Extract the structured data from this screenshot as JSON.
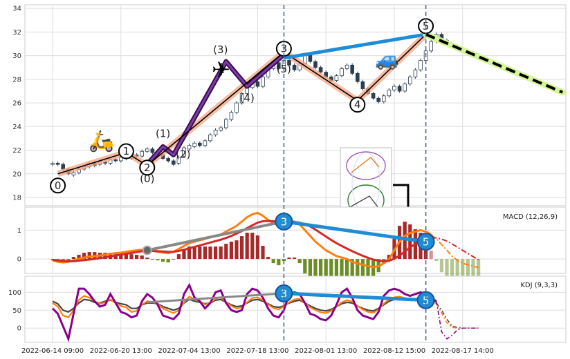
{
  "chart_data": [
    {
      "type": "candlestick",
      "panel": "price",
      "ylim": [
        17.3,
        34.3
      ],
      "y_ticks": [
        18,
        20,
        22,
        24,
        26,
        28,
        30,
        32,
        34
      ],
      "grid": true,
      "candles": [
        [
          0,
          20.8,
          20.9
        ],
        [
          1,
          20.9,
          20.8
        ],
        [
          2,
          20.8,
          20.4
        ],
        [
          3,
          20.4,
          20.0
        ],
        [
          4,
          19.9,
          20.1
        ],
        [
          5,
          20.1,
          20.4
        ],
        [
          6,
          20.4,
          20.6
        ],
        [
          7,
          20.6,
          20.9
        ],
        [
          8,
          20.9,
          20.7
        ],
        [
          9,
          20.8,
          21.0
        ],
        [
          10,
          21.0,
          20.9
        ],
        [
          11,
          20.9,
          21.2
        ],
        [
          12,
          21.2,
          21.1
        ],
        [
          13,
          21.1,
          21.4
        ],
        [
          14,
          21.4,
          21.3
        ],
        [
          15,
          21.3,
          21.6
        ],
        [
          16,
          21.6,
          21.5
        ],
        [
          17,
          21.5,
          21.9
        ],
        [
          18,
          21.9,
          22.1
        ],
        [
          19,
          22.1,
          21.8
        ],
        [
          20,
          21.8,
          21.6
        ],
        [
          21,
          21.6,
          21.3
        ],
        [
          22,
          21.3,
          21.1
        ],
        [
          23,
          21.1,
          20.8
        ],
        [
          24,
          20.9,
          21.4
        ],
        [
          25,
          21.5,
          22.2
        ],
        [
          26,
          22.1,
          22.4
        ],
        [
          27,
          22.3,
          22.6
        ],
        [
          28,
          22.6,
          22.4
        ],
        [
          29,
          22.4,
          22.8
        ],
        [
          30,
          22.8,
          23.3
        ],
        [
          31,
          23.3,
          23.7
        ],
        [
          32,
          23.7,
          23.9
        ],
        [
          33,
          23.9,
          24.6
        ],
        [
          34,
          24.6,
          25.2
        ],
        [
          35,
          25.2,
          26.0
        ],
        [
          36,
          26.0,
          26.8
        ],
        [
          37,
          26.8,
          27.3
        ],
        [
          38,
          27.3,
          27.8
        ],
        [
          39,
          27.8,
          27.4
        ],
        [
          40,
          27.4,
          28.2
        ],
        [
          41,
          28.2,
          28.9
        ],
        [
          42,
          28.9,
          29.4
        ],
        [
          43,
          29.4,
          28.9
        ],
        [
          44,
          28.9,
          29.6
        ],
        [
          45,
          29.6,
          29.2
        ],
        [
          46,
          29.2,
          28.8
        ],
        [
          47,
          28.8,
          29.3
        ],
        [
          48,
          29.3,
          30.1
        ],
        [
          49,
          30.1,
          29.5
        ],
        [
          50,
          29.5,
          29.0
        ],
        [
          51,
          29.0,
          28.6
        ],
        [
          52,
          28.6,
          28.2
        ],
        [
          53,
          28.2,
          27.9
        ],
        [
          54,
          27.9,
          28.3
        ],
        [
          55,
          28.3,
          28.9
        ],
        [
          56,
          28.9,
          29.2
        ],
        [
          57,
          29.2,
          28.5
        ],
        [
          58,
          28.5,
          27.8
        ],
        [
          59,
          27.8,
          27.2
        ],
        [
          60,
          27.2,
          26.8
        ],
        [
          61,
          26.8,
          26.4
        ],
        [
          62,
          26.4,
          26.1
        ],
        [
          63,
          26.1,
          26.6
        ],
        [
          64,
          26.6,
          27.1
        ],
        [
          65,
          27.1,
          27.4
        ],
        [
          66,
          27.4,
          27.0
        ],
        [
          67,
          27.0,
          27.6
        ],
        [
          68,
          27.6,
          28.2
        ],
        [
          69,
          28.2,
          28.8
        ],
        [
          70,
          28.8,
          29.6
        ],
        [
          71,
          29.6,
          30.4
        ],
        [
          72,
          30.4,
          31.2
        ],
        [
          73,
          31.2,
          31.8
        ],
        [
          74,
          31.8,
          31.3
        ],
        [
          75,
          31.3,
          31.1
        ]
      ],
      "elliott_wave_primary": {
        "points": [
          [
            1,
            20.0
          ],
          [
            14,
            21.8
          ],
          [
            18,
            20.7
          ],
          [
            44,
            30.3
          ],
          [
            58,
            26.2
          ],
          [
            71,
            31.8
          ]
        ],
        "labels": [
          "0",
          "1",
          "2",
          "3",
          "4",
          "5"
        ]
      },
      "elliott_wave_intermediate": {
        "points": [
          [
            18,
            20.8
          ],
          [
            21,
            22.3
          ],
          [
            23,
            21.6
          ],
          [
            33,
            29.5
          ],
          [
            37,
            27.4
          ],
          [
            44,
            30.1
          ]
        ],
        "labels": [
          "(0)",
          "(1)",
          "(2)",
          "(3)",
          "(4)",
          "(5)"
        ]
      },
      "divergence_line": [
        [
          44,
          29.8
        ],
        [
          71,
          31.8
        ]
      ],
      "forecast_line": [
        [
          71,
          31.8
        ],
        [
          97,
          26.9
        ]
      ],
      "markers": [
        "scooter-emoji",
        "airplane-emoji",
        "car-emoji"
      ]
    },
    {
      "type": "line",
      "panel": "macd",
      "title": "MACD (12,26,9)",
      "ylim": [
        -0.5,
        1.8
      ],
      "y_ticks": [
        0,
        1
      ],
      "series": [
        {
          "color": "#ff7f0e",
          "values": [
            -0.05,
            -0.1,
            -0.12,
            -0.1,
            -0.05,
            0.0,
            0.05,
            0.08,
            0.1,
            0.12,
            0.15,
            0.18,
            0.2,
            0.22,
            0.25,
            0.28,
            0.3,
            0.32,
            0.3,
            0.28,
            0.25,
            0.22,
            0.2,
            0.25,
            0.35,
            0.45,
            0.55,
            0.6,
            0.65,
            0.7,
            0.75,
            0.8,
            0.85,
            0.95,
            1.05,
            1.15,
            1.3,
            1.45,
            1.55,
            1.6,
            1.5,
            1.35,
            1.25,
            1.2,
            1.25,
            1.3,
            1.3,
            1.2,
            1.0,
            0.8,
            0.6,
            0.45,
            0.3,
            0.2,
            0.1,
            0.05,
            0.0,
            -0.1,
            -0.15,
            -0.2,
            -0.25,
            -0.28,
            -0.25,
            -0.15,
            0.0,
            0.3,
            0.6,
            0.8,
            0.9,
            0.95,
            1.0,
            0.95,
            0.85,
            0.7,
            0.5,
            0.3,
            0.1,
            -0.05,
            -0.15,
            -0.2,
            -0.25,
            -0.3
          ]
        },
        {
          "color": "#d62728",
          "values": [
            -0.03,
            -0.05,
            -0.07,
            -0.08,
            -0.08,
            -0.06,
            -0.04,
            -0.02,
            0.0,
            0.03,
            0.06,
            0.09,
            0.12,
            0.15,
            0.18,
            0.21,
            0.24,
            0.27,
            0.28,
            0.28,
            0.27,
            0.26,
            0.25,
            0.25,
            0.28,
            0.32,
            0.37,
            0.42,
            0.47,
            0.52,
            0.57,
            0.62,
            0.67,
            0.73,
            0.8,
            0.88,
            0.97,
            1.07,
            1.17,
            1.26,
            1.31,
            1.32,
            1.31,
            1.29,
            1.28,
            1.28,
            1.28,
            1.26,
            1.21,
            1.13,
            1.02,
            0.9,
            0.78,
            0.66,
            0.55,
            0.45,
            0.36,
            0.27,
            0.19,
            0.11,
            0.04,
            -0.02,
            -0.06,
            -0.08,
            -0.06,
            0.01,
            0.12,
            0.26,
            0.4,
            0.52,
            0.62,
            0.69,
            0.73,
            0.73,
            0.69,
            0.62,
            0.52,
            0.41,
            0.3,
            0.19,
            0.08,
            -0.02
          ]
        }
      ],
      "histogram_colors": [
        "#a52a2a",
        "#6b8e23"
      ],
      "divergence_line": [
        [
          18,
          0.3
        ],
        [
          44,
          1.3
        ]
      ],
      "divergence_line_2": [
        [
          44,
          1.3
        ],
        [
          71,
          0.6
        ]
      ]
    },
    {
      "type": "line",
      "panel": "kdj",
      "title": "KDJ (9,3,3)",
      "ylim": [
        -40,
        145
      ],
      "y_ticks": [
        0,
        50,
        100
      ],
      "series": [
        {
          "color": "#444444",
          "values": [
            75,
            68,
            50,
            45,
            55,
            70,
            80,
            78,
            72,
            70,
            75,
            78,
            72,
            68,
            65,
            55,
            55,
            65,
            70,
            70,
            68,
            60,
            55,
            50,
            55,
            70,
            80,
            75,
            72,
            68,
            70,
            78,
            80,
            72,
            65,
            60,
            62,
            70,
            78,
            80,
            75,
            68,
            60,
            58,
            62,
            70,
            75,
            78,
            70,
            62,
            55,
            50,
            48,
            52,
            60,
            68,
            72,
            70,
            62,
            55,
            50,
            48,
            55,
            65,
            75,
            80,
            82,
            80,
            78,
            80,
            82,
            85,
            80,
            70,
            50,
            25,
            5,
            2,
            0,
            0,
            0,
            0
          ]
        },
        {
          "color": "#ff7f0e",
          "values": [
            70,
            60,
            35,
            30,
            50,
            78,
            90,
            85,
            75,
            68,
            72,
            80,
            70,
            62,
            58,
            45,
            48,
            65,
            75,
            73,
            68,
            55,
            48,
            42,
            50,
            72,
            88,
            80,
            74,
            66,
            70,
            82,
            86,
            72,
            62,
            55,
            58,
            72,
            84,
            86,
            78,
            66,
            56,
            52,
            60,
            72,
            80,
            82,
            70,
            58,
            50,
            44,
            42,
            48,
            60,
            72,
            78,
            74,
            62,
            52,
            45,
            43,
            52,
            68,
            80,
            86,
            88,
            84,
            80,
            82,
            86,
            88,
            82,
            68,
            42,
            15,
            2,
            0,
            0,
            0,
            0,
            0
          ]
        },
        {
          "color": "#8b008b",
          "values": [
            55,
            40,
            5,
            -30,
            40,
            110,
            110,
            95,
            75,
            60,
            65,
            95,
            70,
            45,
            40,
            30,
            35,
            75,
            95,
            85,
            65,
            35,
            30,
            25,
            40,
            95,
            120,
            85,
            75,
            55,
            70,
            100,
            105,
            70,
            50,
            45,
            50,
            95,
            110,
            105,
            85,
            55,
            35,
            30,
            50,
            95,
            100,
            95,
            70,
            40,
            35,
            25,
            22,
            35,
            65,
            100,
            110,
            85,
            50,
            35,
            30,
            25,
            45,
            90,
            105,
            110,
            105,
            95,
            90,
            95,
            100,
            95,
            85,
            75,
            -10,
            -30,
            -20,
            -5,
            0,
            0,
            0,
            0
          ]
        }
      ],
      "divergence_line": [
        [
          18,
          72
        ],
        [
          44,
          97
        ]
      ],
      "divergence_line_2": [
        [
          44,
          97
        ],
        [
          71,
          78
        ]
      ]
    }
  ],
  "x_ticks": [
    {
      "index": 0,
      "label": "2022-06-14 09:00"
    },
    {
      "index": 13,
      "label": "2022-06-20 13:00"
    },
    {
      "index": 26,
      "label": "2022-07-04 13:00"
    },
    {
      "index": 39,
      "label": "2022-07-18 13:00"
    },
    {
      "index": 52,
      "label": "2022-08-01 13:00"
    },
    {
      "index": 65,
      "label": "2022-08-12 15:00"
    },
    {
      "index": 78,
      "label": "2022-08-17 14:00"
    }
  ],
  "macd_markers": {
    "a": "3",
    "b": "5"
  },
  "kdj_markers": {
    "a": "3",
    "b": "5"
  }
}
